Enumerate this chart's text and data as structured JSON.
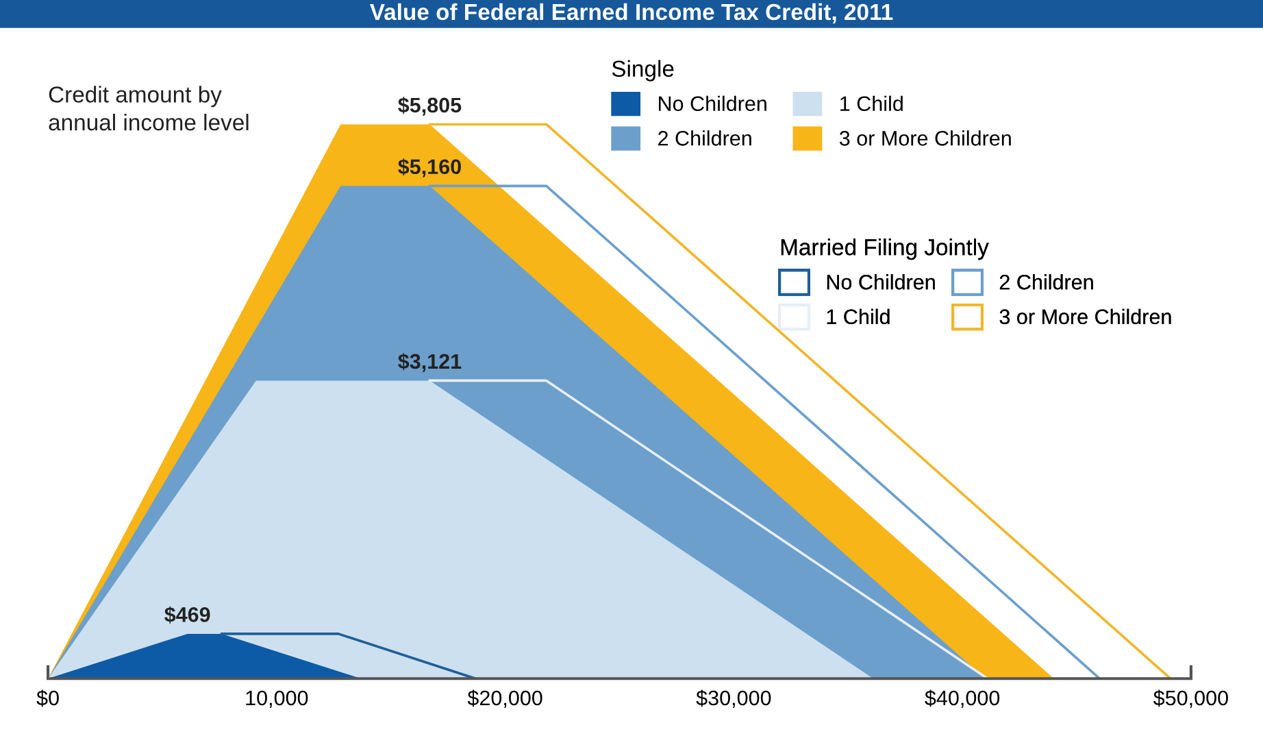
{
  "chart_data": {
    "type": "area",
    "title": "Value of Federal Earned Income Tax Credit, 2011",
    "ylabel": "Credit amount by\nannual income level",
    "legend_title": "Single",
    "annotations": [
      "Married Filing Jointly"
    ],
    "xlim": [
      0,
      50000
    ],
    "xticks": [
      {
        "value": 0,
        "label": "$0"
      },
      {
        "value": 10000,
        "label": "10,000"
      },
      {
        "value": 20000,
        "label": "$20,000"
      },
      {
        "value": 30000,
        "label": "$30,000"
      },
      {
        "value": 40000,
        "label": "$40,000"
      },
      {
        "value": 50000,
        "label": "$50,000"
      }
    ],
    "legend": "top right",
    "grid": false,
    "series": [
      {
        "name": "No Children",
        "color": "#0d5aa7",
        "x": [
          0,
          6100,
          7600,
          13700
        ],
        "values": [
          0,
          469,
          469,
          0
        ],
        "value_labels": [
          null,
          "$469",
          null,
          null
        ]
      },
      {
        "name": "1 Child",
        "color": "#cde0ef",
        "x": [
          0,
          9100,
          16700,
          36100
        ],
        "values": [
          0,
          3121,
          3121,
          0
        ],
        "value_labels": [
          null,
          null,
          "$3,121",
          null
        ]
      },
      {
        "name": "2 Children",
        "color": "#6c9fcb",
        "x": [
          0,
          12800,
          16700,
          41000
        ],
        "values": [
          0,
          5160,
          5160,
          0
        ],
        "value_labels": [
          null,
          null,
          "$5,160",
          null
        ]
      },
      {
        "name": "3 or More Children",
        "color": "#f8b517",
        "x": [
          0,
          12800,
          16700,
          44000
        ],
        "values": [
          0,
          5805,
          5805,
          0
        ],
        "value_labels": [
          null,
          null,
          "$5,805",
          null
        ]
      },
      {
        "name": "No Children",
        "type": "line",
        "color": "#1f5f9a",
        "x": [
          7600,
          12700,
          18700
        ],
        "values": [
          469,
          469,
          0
        ]
      },
      {
        "name": "1 Child",
        "type": "line",
        "color": "#e6eef6",
        "x": [
          16700,
          21800,
          41100
        ],
        "values": [
          3121,
          3121,
          0
        ]
      },
      {
        "name": "2 Children",
        "type": "line",
        "color": "#6c9fcb",
        "x": [
          16700,
          21800,
          46000
        ],
        "values": [
          5160,
          5160,
          0
        ]
      },
      {
        "name": "3 or More Children",
        "type": "line",
        "color": "#f0b72a",
        "x": [
          16700,
          21800,
          49100
        ],
        "values": [
          5805,
          5805,
          0
        ]
      }
    ]
  }
}
